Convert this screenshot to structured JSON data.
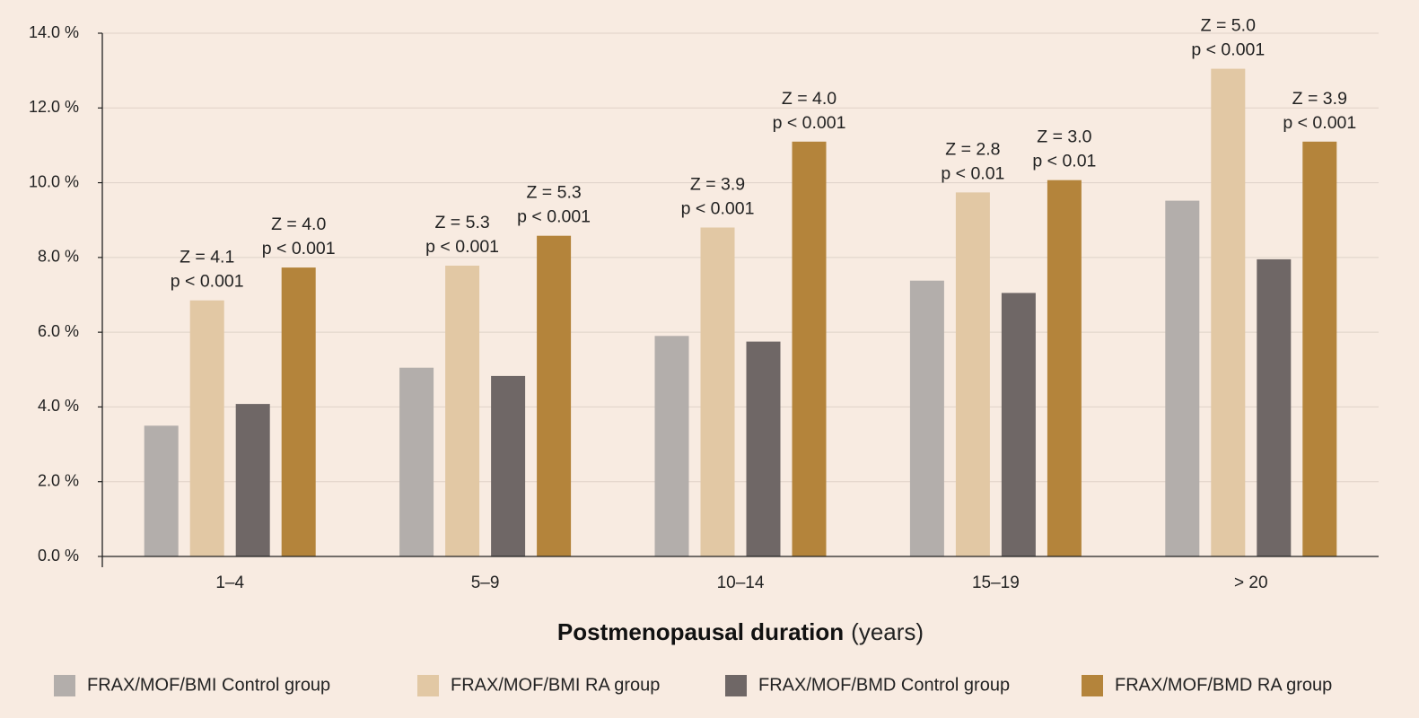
{
  "chart_data": {
    "type": "bar",
    "categories": [
      "1–4",
      "5–9",
      "10–14",
      "15–19",
      "> 20"
    ],
    "series": [
      {
        "name": "FRAX/MOF/BMI Control group",
        "color": "#b3aeab",
        "values": [
          3.5,
          5.05,
          5.9,
          7.38,
          9.52
        ]
      },
      {
        "name": "FRAX/MOF/BMI RA group",
        "color": "#e2c8a4",
        "values": [
          6.85,
          7.78,
          8.8,
          9.74,
          13.05
        ]
      },
      {
        "name": "FRAX/MOF/BMD Control group",
        "color": "#6f6766",
        "values": [
          4.08,
          4.83,
          5.75,
          7.05,
          7.95
        ]
      },
      {
        "name": "FRAX/MOF/BMD RA group",
        "color": "#b4843b",
        "values": [
          7.73,
          8.58,
          11.1,
          10.07,
          11.1
        ]
      }
    ],
    "ylim": [
      0,
      14
    ],
    "yticks": [
      "0.0 %",
      "2.0 %",
      "4.0 %",
      "6.0 %",
      "8.0 %",
      "10.0 %",
      "12.0 %",
      "14.0 %"
    ],
    "xlabel": "Postmenopausal duration",
    "xlabel_unit": "(years)",
    "ylabel": "",
    "grid": true,
    "legend_position": "bottom",
    "annotations": [
      {
        "category": 0,
        "series": 1,
        "z": "Z = 4.1",
        "p": "p < 0.001"
      },
      {
        "category": 0,
        "series": 3,
        "z": "Z = 4.0",
        "p": "p < 0.001"
      },
      {
        "category": 1,
        "series": 1,
        "z": "Z = 5.3",
        "p": "p < 0.001"
      },
      {
        "category": 1,
        "series": 3,
        "z": "Z = 5.3",
        "p": "p < 0.001"
      },
      {
        "category": 2,
        "series": 1,
        "z": "Z = 3.9",
        "p": "p < 0.001"
      },
      {
        "category": 2,
        "series": 3,
        "z": "Z = 4.0",
        "p": "p < 0.001"
      },
      {
        "category": 3,
        "series": 1,
        "z": "Z = 2.8",
        "p": "p < 0.01"
      },
      {
        "category": 3,
        "series": 3,
        "z": "Z = 3.0",
        "p": "p < 0.01"
      },
      {
        "category": 4,
        "series": 1,
        "z": "Z = 5.0",
        "p": "p < 0.001"
      },
      {
        "category": 4,
        "series": 3,
        "z": "Z = 3.9",
        "p": "p < 0.001"
      }
    ]
  }
}
